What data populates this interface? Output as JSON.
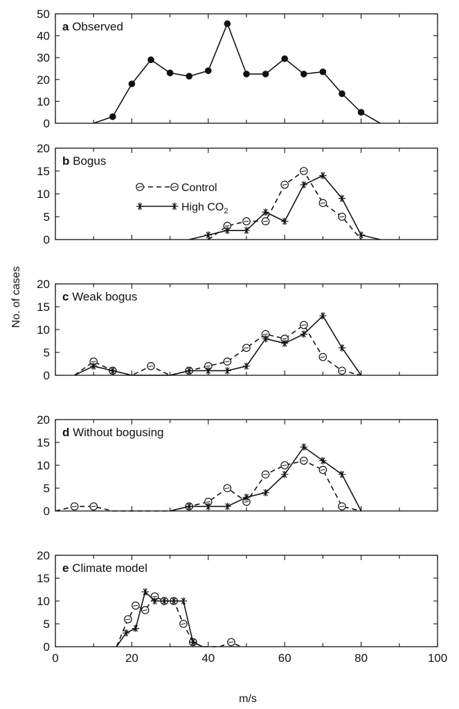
{
  "chart_data": [
    {
      "id": "a",
      "type": "line",
      "panel_letter": "a",
      "title": "Observed",
      "ylim": [
        0,
        50
      ],
      "yticks": [
        0,
        10,
        20,
        30,
        40,
        50
      ],
      "series": [
        {
          "style": "filled-circle-solid",
          "points": [
            [
              10,
              0
            ],
            [
              15,
              3
            ],
            [
              20,
              18
            ],
            [
              25,
              29
            ],
            [
              30,
              23
            ],
            [
              35,
              21.5
            ],
            [
              40,
              24
            ],
            [
              45,
              45.5
            ],
            [
              50,
              22.5
            ],
            [
              55,
              22.5
            ],
            [
              60,
              29.5
            ],
            [
              65,
              22.5
            ],
            [
              70,
              23.5
            ],
            [
              75,
              13.5
            ],
            [
              80,
              5
            ],
            [
              85,
              0
            ]
          ],
          "markers": [
            [
              15,
              3
            ],
            [
              20,
              18
            ],
            [
              25,
              29
            ],
            [
              30,
              23
            ],
            [
              35,
              21.5
            ],
            [
              40,
              24
            ],
            [
              45,
              45.5
            ],
            [
              50,
              22.5
            ],
            [
              55,
              22.5
            ],
            [
              60,
              29.5
            ],
            [
              65,
              22.5
            ],
            [
              70,
              23.5
            ],
            [
              75,
              13.5
            ],
            [
              80,
              5
            ]
          ]
        }
      ]
    },
    {
      "id": "b",
      "type": "line",
      "panel_letter": "b",
      "title": "Bogus",
      "ylim": [
        0,
        20
      ],
      "yticks": [
        0,
        5,
        10,
        15,
        20
      ],
      "series": [
        {
          "name": "Control",
          "style": "open-circle-dashed",
          "points": [
            [
              40,
              0
            ],
            [
              45,
              3
            ],
            [
              50,
              4
            ],
            [
              55,
              4
            ],
            [
              60,
              12
            ],
            [
              65,
              15
            ],
            [
              70,
              8
            ],
            [
              75,
              5
            ],
            [
              80,
              0
            ]
          ],
          "markers": [
            [
              45,
              3
            ],
            [
              50,
              4
            ],
            [
              55,
              4
            ],
            [
              60,
              12
            ],
            [
              65,
              15
            ],
            [
              70,
              8
            ],
            [
              75,
              5
            ]
          ]
        },
        {
          "name": "High CO₂",
          "style": "asterisk-solid",
          "points": [
            [
              35,
              0
            ],
            [
              40,
              1
            ],
            [
              45,
              2
            ],
            [
              50,
              2
            ],
            [
              55,
              6
            ],
            [
              60,
              4
            ],
            [
              65,
              12
            ],
            [
              70,
              14
            ],
            [
              75,
              9
            ],
            [
              80,
              1
            ],
            [
              85,
              0
            ]
          ],
          "markers": [
            [
              40,
              1
            ],
            [
              45,
              2
            ],
            [
              50,
              2
            ],
            [
              55,
              6
            ],
            [
              60,
              4
            ],
            [
              65,
              12
            ],
            [
              70,
              14
            ],
            [
              75,
              9
            ],
            [
              80,
              1
            ]
          ]
        }
      ]
    },
    {
      "id": "c",
      "type": "line",
      "panel_letter": "c",
      "title": "Weak bogus",
      "ylim": [
        0,
        20
      ],
      "yticks": [
        0,
        5,
        10,
        15,
        20
      ],
      "series": [
        {
          "name": "Control",
          "style": "open-circle-dashed",
          "points": [
            [
              5,
              0
            ],
            [
              10,
              3
            ],
            [
              15,
              1
            ],
            [
              20,
              0
            ],
            [
              25,
              2
            ],
            [
              30,
              0
            ],
            [
              35,
              1
            ],
            [
              40,
              2
            ],
            [
              45,
              3
            ],
            [
              50,
              6
            ],
            [
              55,
              9
            ],
            [
              60,
              8
            ],
            [
              65,
              11
            ],
            [
              70,
              4
            ],
            [
              75,
              1
            ],
            [
              80,
              0
            ]
          ],
          "markers": [
            [
              10,
              3
            ],
            [
              15,
              1
            ],
            [
              25,
              2
            ],
            [
              35,
              1
            ],
            [
              40,
              2
            ],
            [
              45,
              3
            ],
            [
              50,
              6
            ],
            [
              55,
              9
            ],
            [
              60,
              8
            ],
            [
              65,
              11
            ],
            [
              70,
              4
            ],
            [
              75,
              1
            ]
          ]
        },
        {
          "name": "High CO₂",
          "style": "asterisk-solid",
          "points": [
            [
              5,
              0
            ],
            [
              10,
              2
            ],
            [
              15,
              1
            ],
            [
              20,
              0
            ],
            [
              30,
              0
            ],
            [
              35,
              1
            ],
            [
              40,
              1
            ],
            [
              45,
              1
            ],
            [
              50,
              2
            ],
            [
              55,
              8
            ],
            [
              60,
              7
            ],
            [
              65,
              9
            ],
            [
              70,
              13
            ],
            [
              75,
              6
            ],
            [
              80,
              0
            ]
          ],
          "markers": [
            [
              10,
              2
            ],
            [
              15,
              1
            ],
            [
              35,
              1
            ],
            [
              40,
              1
            ],
            [
              45,
              1
            ],
            [
              50,
              2
            ],
            [
              55,
              8
            ],
            [
              60,
              7
            ],
            [
              65,
              9
            ],
            [
              70,
              13
            ],
            [
              75,
              6
            ]
          ]
        }
      ]
    },
    {
      "id": "d",
      "type": "line",
      "panel_letter": "d",
      "title": "Without bogusing",
      "ylim": [
        0,
        20
      ],
      "yticks": [
        0,
        5,
        10,
        15,
        20
      ],
      "series": [
        {
          "name": "Control",
          "style": "open-circle-dashed",
          "points": [
            [
              0,
              0
            ],
            [
              5,
              1
            ],
            [
              10,
              1
            ],
            [
              15,
              0
            ],
            [
              30,
              0
            ],
            [
              35,
              1
            ],
            [
              40,
              2
            ],
            [
              45,
              5
            ],
            [
              50,
              2
            ],
            [
              55,
              8
            ],
            [
              60,
              10
            ],
            [
              65,
              11
            ],
            [
              70,
              9
            ],
            [
              75,
              1
            ],
            [
              80,
              0
            ]
          ],
          "markers": [
            [
              5,
              1
            ],
            [
              10,
              1
            ],
            [
              35,
              1
            ],
            [
              40,
              2
            ],
            [
              45,
              5
            ],
            [
              50,
              2
            ],
            [
              55,
              8
            ],
            [
              60,
              10
            ],
            [
              65,
              11
            ],
            [
              70,
              9
            ],
            [
              75,
              1
            ]
          ]
        },
        {
          "name": "High CO₂",
          "style": "asterisk-solid",
          "points": [
            [
              30,
              0
            ],
            [
              35,
              1
            ],
            [
              40,
              1
            ],
            [
              45,
              1
            ],
            [
              50,
              3
            ],
            [
              55,
              4
            ],
            [
              60,
              8
            ],
            [
              65,
              14
            ],
            [
              70,
              11
            ],
            [
              75,
              8
            ],
            [
              80,
              0
            ]
          ],
          "markers": [
            [
              35,
              1
            ],
            [
              40,
              1
            ],
            [
              45,
              1
            ],
            [
              50,
              3
            ],
            [
              55,
              4
            ],
            [
              60,
              8
            ],
            [
              65,
              14
            ],
            [
              70,
              11
            ],
            [
              75,
              8
            ]
          ]
        }
      ]
    },
    {
      "id": "e",
      "type": "line",
      "panel_letter": "e",
      "title": "Climate model",
      "ylim": [
        0,
        20
      ],
      "yticks": [
        0,
        5,
        10,
        15,
        20
      ],
      "xlim": [
        0,
        100
      ],
      "xticks": [
        0,
        20,
        40,
        60,
        80,
        100
      ],
      "xlabel": "m/s",
      "series": [
        {
          "name": "Control",
          "style": "open-circle-dashed",
          "points": [
            [
              16,
              0
            ],
            [
              19,
              6
            ],
            [
              21,
              9
            ],
            [
              23.5,
              8
            ],
            [
              26,
              11
            ],
            [
              28.5,
              10
            ],
            [
              31,
              10
            ],
            [
              33.5,
              5
            ],
            [
              36,
              1
            ],
            [
              38.5,
              0
            ],
            [
              43,
              0
            ],
            [
              46,
              1
            ],
            [
              48.5,
              0
            ]
          ],
          "markers": [
            [
              19,
              6
            ],
            [
              21,
              9
            ],
            [
              23.5,
              8
            ],
            [
              26,
              11
            ],
            [
              28.5,
              10
            ],
            [
              31,
              10
            ],
            [
              33.5,
              5
            ],
            [
              36,
              1
            ],
            [
              46,
              1
            ]
          ]
        },
        {
          "name": "High CO₂",
          "style": "asterisk-solid",
          "points": [
            [
              16,
              0
            ],
            [
              18.5,
              3
            ],
            [
              21,
              4
            ],
            [
              23.5,
              12
            ],
            [
              26,
              10
            ],
            [
              28.5,
              10
            ],
            [
              31,
              10
            ],
            [
              33.5,
              10
            ],
            [
              36,
              1
            ],
            [
              38.5,
              0
            ]
          ],
          "markers": [
            [
              18.5,
              3
            ],
            [
              21,
              4
            ],
            [
              23.5,
              12
            ],
            [
              26,
              10
            ],
            [
              28.5,
              10
            ],
            [
              31,
              10
            ],
            [
              33.5,
              10
            ],
            [
              36,
              1
            ]
          ]
        }
      ]
    }
  ],
  "shared": {
    "ylabel": "No. of cases",
    "xlim": [
      0,
      100
    ],
    "legend": {
      "panel": "b",
      "placement": "upper-left",
      "entries": [
        {
          "label": "Control",
          "style": "open-circle-dashed"
        },
        {
          "label": "High CO",
          "subscript": "2",
          "style": "asterisk-solid"
        }
      ]
    }
  }
}
